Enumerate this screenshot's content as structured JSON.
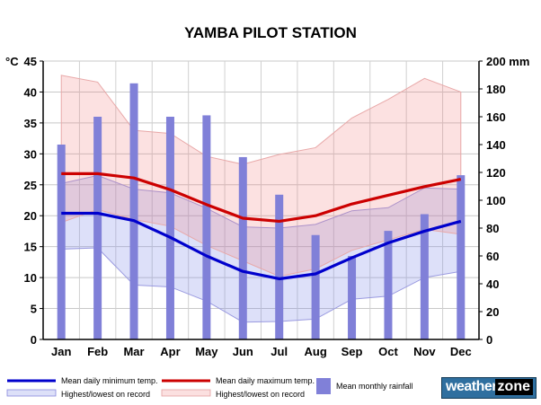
{
  "chart_data": {
    "type": "bar-line",
    "title": "YAMBA PILOT STATION",
    "categories": [
      "Jan",
      "Feb",
      "Mar",
      "Apr",
      "May",
      "Jun",
      "Jul",
      "Aug",
      "Sep",
      "Oct",
      "Nov",
      "Dec"
    ],
    "left_axis": {
      "label": "°C",
      "min": 0,
      "max": 45,
      "ticks": [
        0,
        5,
        10,
        15,
        20,
        25,
        30,
        35,
        40,
        45
      ]
    },
    "right_axis": {
      "label": "mm",
      "min": 0,
      "max": 200,
      "ticks": [
        0,
        20,
        40,
        60,
        80,
        100,
        120,
        140,
        160,
        180,
        200
      ]
    },
    "grid": true,
    "series": [
      {
        "name": "Mean monthly rainfall",
        "type": "bar",
        "axis": "right",
        "color": "#8080d8",
        "values": [
          140,
          160,
          184,
          160,
          161,
          131,
          104,
          75,
          60,
          78,
          90,
          118
        ]
      },
      {
        "name": "Mean daily minimum temp.",
        "type": "line",
        "axis": "left",
        "color": "#0000cc",
        "values": [
          20.4,
          20.4,
          19.2,
          16.5,
          13.5,
          11.0,
          9.8,
          10.6,
          13.2,
          15.6,
          17.5,
          19.1
        ]
      },
      {
        "name": "Mean daily maximum temp.",
        "type": "line",
        "axis": "left",
        "color": "#cc0000",
        "values": [
          26.8,
          26.8,
          26.1,
          24.2,
          21.8,
          19.6,
          19.1,
          20.0,
          21.9,
          23.3,
          24.7,
          25.9
        ]
      },
      {
        "name": "Highest/lowest on record",
        "type": "band",
        "axis": "left",
        "color": "#0000cc",
        "upper": [
          25.2,
          26.5,
          24.3,
          23.7,
          21.2,
          18.2,
          18.0,
          18.6,
          20.8,
          21.3,
          24.5,
          24.3
        ],
        "lower": [
          14.6,
          14.8,
          8.8,
          8.5,
          6.2,
          2.8,
          2.9,
          3.3,
          6.5,
          7.0,
          10.0,
          11.0
        ]
      },
      {
        "name": "Highest/lowest on record",
        "type": "band",
        "axis": "left",
        "color": "#cc0000",
        "upper": [
          42.7,
          41.6,
          33.8,
          33.3,
          29.6,
          28.3,
          29.9,
          31.0,
          35.8,
          38.8,
          42.2,
          40.0
        ],
        "lower": [
          18.9,
          21.0,
          19.4,
          18.3,
          15.2,
          12.7,
          10.2,
          11.4,
          14.4,
          16.1,
          17.8,
          17.0
        ]
      }
    ]
  },
  "legend": {
    "min_label": "Mean daily minimum temp.",
    "max_label": "Mean daily maximum temp.",
    "min_record_label": "Highest/lowest on record",
    "max_record_label": "Highest/lowest on record",
    "rain_label": "Mean monthly rainfall"
  },
  "logo": {
    "word1": "weather",
    "word2": "zone"
  }
}
